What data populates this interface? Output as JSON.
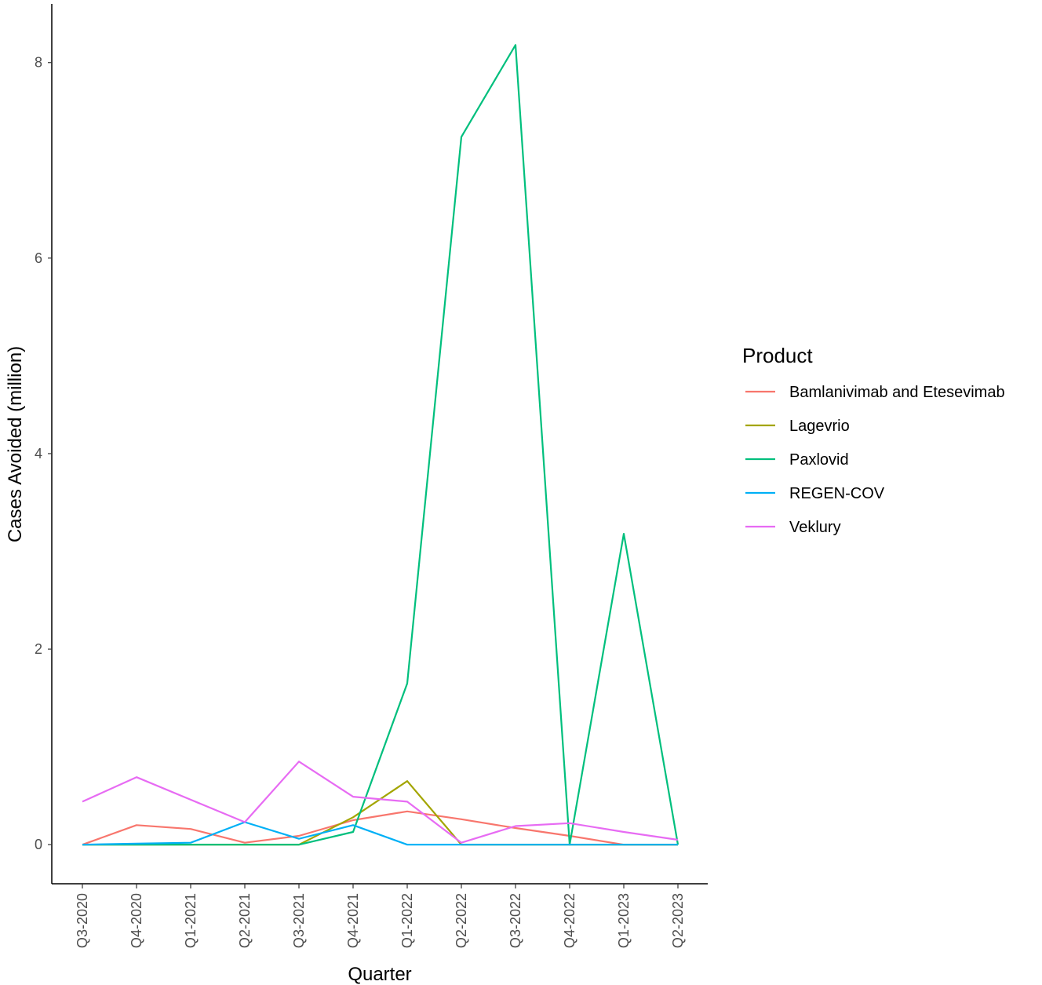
{
  "chart_data": {
    "type": "line",
    "xlabel": "Quarter",
    "ylabel": "Cases Avoided (million)",
    "categories": [
      "Q3-2020",
      "Q4-2020",
      "Q1-2021",
      "Q2-2021",
      "Q3-2021",
      "Q4-2021",
      "Q1-2022",
      "Q2-2022",
      "Q3-2022",
      "Q4-2022",
      "Q1-2023",
      "Q2-2023"
    ],
    "ylim": [
      -0.4,
      8.6
    ],
    "yticks": [
      0,
      2,
      4,
      6,
      8
    ],
    "grid": false,
    "legend": {
      "title": "Product",
      "placement": "right"
    },
    "series": [
      {
        "name": "Bamlanivimab and Etesevimab",
        "color": "#F8766D",
        "values": [
          0,
          0.2,
          0.16,
          0.02,
          0.09,
          0.25,
          0.34,
          0.26,
          0.17,
          0.09,
          0,
          0
        ]
      },
      {
        "name": "Lagevrio",
        "color": "#A3A500",
        "values": [
          0,
          0,
          0,
          0,
          0,
          0.28,
          0.65,
          0,
          0,
          0,
          0,
          0
        ]
      },
      {
        "name": "Paxlovid",
        "color": "#00BF7D",
        "values": [
          0,
          0,
          0,
          0,
          0,
          0.13,
          1.65,
          7.24,
          8.18,
          0,
          3.18,
          0
        ]
      },
      {
        "name": "REGEN-COV",
        "color": "#00B0F6",
        "values": [
          0,
          0.01,
          0.02,
          0.23,
          0.06,
          0.2,
          0,
          0,
          0,
          0,
          0,
          0
        ]
      },
      {
        "name": "Veklury",
        "color": "#E76BF3",
        "values": [
          0.44,
          0.69,
          0.46,
          0.23,
          0.85,
          0.49,
          0.44,
          0.02,
          0.19,
          0.22,
          0.13,
          0.05
        ]
      }
    ]
  }
}
